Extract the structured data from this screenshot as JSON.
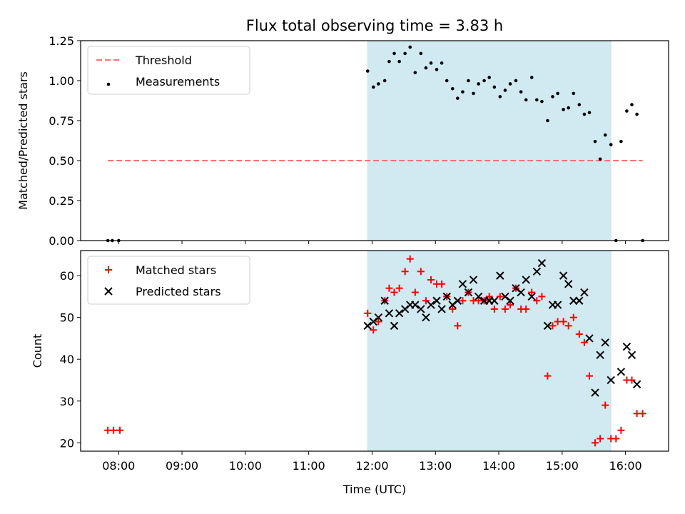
{
  "title": "Flux total observing time = 3.83 h",
  "colors": {
    "threshold": "#ff7070",
    "matched": "#ff0000",
    "predicted": "#000000",
    "measurement": "#000000",
    "span": "#add8e6"
  },
  "chart_data": [
    {
      "type": "scatter",
      "ylabel": "Matched/Predicted stars",
      "xlim": [
        7.4,
        16.68
      ],
      "ylim": [
        0,
        1.25
      ],
      "yticks": [
        0,
        0.25,
        0.5,
        0.75,
        1.0,
        1.25
      ],
      "ytick_labels": [
        "0.00",
        "0.25",
        "0.50",
        "0.75",
        "1.00",
        "1.25"
      ],
      "highlight_span": [
        11.93,
        15.77
      ],
      "threshold": {
        "label": "Threshold",
        "value": 0.5,
        "x_range": [
          7.83,
          16.27
        ]
      },
      "legend": {
        "placement": "top-left",
        "entries": [
          "Threshold",
          "Measurements"
        ]
      },
      "series": [
        {
          "name": "Measurements",
          "marker": "dot",
          "points": [
            [
              7.83,
              0.0
            ],
            [
              7.9,
              0.0
            ],
            [
              8.0,
              0.0
            ],
            [
              11.93,
              1.06
            ],
            [
              12.02,
              0.96
            ],
            [
              12.1,
              0.98
            ],
            [
              12.2,
              1.0
            ],
            [
              12.27,
              1.12
            ],
            [
              12.35,
              1.17
            ],
            [
              12.43,
              1.12
            ],
            [
              12.52,
              1.17
            ],
            [
              12.6,
              1.21
            ],
            [
              12.68,
              1.05
            ],
            [
              12.77,
              1.17
            ],
            [
              12.85,
              1.08
            ],
            [
              12.93,
              1.11
            ],
            [
              13.02,
              1.07
            ],
            [
              13.1,
              1.11
            ],
            [
              13.18,
              1.0
            ],
            [
              13.27,
              0.95
            ],
            [
              13.35,
              0.89
            ],
            [
              13.43,
              0.93
            ],
            [
              13.52,
              1.0
            ],
            [
              13.6,
              0.92
            ],
            [
              13.68,
              0.98
            ],
            [
              13.77,
              1.0
            ],
            [
              13.85,
              1.02
            ],
            [
              13.93,
              0.96
            ],
            [
              14.02,
              0.9
            ],
            [
              14.1,
              0.94
            ],
            [
              14.18,
              0.98
            ],
            [
              14.27,
              1.0
            ],
            [
              14.35,
              0.93
            ],
            [
              14.43,
              0.88
            ],
            [
              14.52,
              1.02
            ],
            [
              14.6,
              0.88
            ],
            [
              14.68,
              0.87
            ],
            [
              14.77,
              0.75
            ],
            [
              14.85,
              0.9
            ],
            [
              14.93,
              0.92
            ],
            [
              15.02,
              0.82
            ],
            [
              15.1,
              0.83
            ],
            [
              15.18,
              0.92
            ],
            [
              15.27,
              0.85
            ],
            [
              15.35,
              0.79
            ],
            [
              15.43,
              0.8
            ],
            [
              15.52,
              0.62
            ],
            [
              15.6,
              0.51
            ],
            [
              15.68,
              0.66
            ],
            [
              15.77,
              0.6
            ],
            [
              15.85,
              0.0
            ],
            [
              15.93,
              0.62
            ],
            [
              16.02,
              0.81
            ],
            [
              16.1,
              0.85
            ],
            [
              16.18,
              0.79
            ],
            [
              16.27,
              0.0
            ]
          ]
        }
      ]
    },
    {
      "type": "scatter",
      "ylabel": "Count",
      "xlabel": "Time (UTC)",
      "xlim": [
        7.4,
        16.68
      ],
      "ylim": [
        18,
        66
      ],
      "yticks": [
        20,
        30,
        40,
        50,
        60
      ],
      "xticks": [
        8,
        9,
        10,
        11,
        12,
        13,
        14,
        15,
        16
      ],
      "xtick_labels": [
        "08:00",
        "09:00",
        "10:00",
        "11:00",
        "12:00",
        "13:00",
        "14:00",
        "15:00",
        "16:00"
      ],
      "highlight_span": [
        11.93,
        15.77
      ],
      "legend": {
        "placement": "top-left",
        "entries": [
          "Matched stars",
          "Predicted stars"
        ]
      },
      "series": [
        {
          "name": "Matched stars",
          "marker": "plus",
          "points": [
            [
              7.83,
              23
            ],
            [
              7.92,
              23
            ],
            [
              8.02,
              23
            ],
            [
              11.93,
              51
            ],
            [
              12.02,
              47
            ],
            [
              12.1,
              49
            ],
            [
              12.2,
              54
            ],
            [
              12.27,
              57
            ],
            [
              12.35,
              56
            ],
            [
              12.43,
              57
            ],
            [
              12.52,
              61
            ],
            [
              12.6,
              64
            ],
            [
              12.68,
              56
            ],
            [
              12.77,
              61
            ],
            [
              12.85,
              54
            ],
            [
              12.93,
              59
            ],
            [
              13.02,
              58
            ],
            [
              13.1,
              58
            ],
            [
              13.18,
              55
            ],
            [
              13.27,
              52
            ],
            [
              13.35,
              48
            ],
            [
              13.43,
              54
            ],
            [
              13.52,
              56
            ],
            [
              13.6,
              54
            ],
            [
              13.68,
              54
            ],
            [
              13.77,
              54
            ],
            [
              13.85,
              55
            ],
            [
              13.93,
              52
            ],
            [
              14.02,
              55
            ],
            [
              14.1,
              52
            ],
            [
              14.18,
              53
            ],
            [
              14.27,
              57
            ],
            [
              14.35,
              52
            ],
            [
              14.43,
              52
            ],
            [
              14.52,
              56
            ],
            [
              14.6,
              54
            ],
            [
              14.68,
              55
            ],
            [
              14.77,
              36
            ],
            [
              14.85,
              48
            ],
            [
              14.93,
              49
            ],
            [
              15.02,
              49
            ],
            [
              15.1,
              48
            ],
            [
              15.18,
              50
            ],
            [
              15.27,
              46
            ],
            [
              15.35,
              44
            ],
            [
              15.43,
              36
            ],
            [
              15.52,
              20
            ],
            [
              15.6,
              21
            ],
            [
              15.68,
              29
            ],
            [
              15.77,
              21
            ],
            [
              15.85,
              21
            ],
            [
              15.93,
              23
            ],
            [
              16.02,
              35
            ],
            [
              16.1,
              35
            ],
            [
              16.18,
              27
            ],
            [
              16.27,
              27
            ]
          ]
        },
        {
          "name": "Predicted stars",
          "marker": "x",
          "points": [
            [
              11.93,
              48
            ],
            [
              12.02,
              49
            ],
            [
              12.1,
              50
            ],
            [
              12.2,
              54
            ],
            [
              12.27,
              51
            ],
            [
              12.35,
              48
            ],
            [
              12.43,
              51
            ],
            [
              12.52,
              52
            ],
            [
              12.6,
              53
            ],
            [
              12.68,
              53
            ],
            [
              12.77,
              52
            ],
            [
              12.85,
              50
            ],
            [
              12.93,
              53
            ],
            [
              13.02,
              54
            ],
            [
              13.1,
              52
            ],
            [
              13.18,
              55
            ],
            [
              13.27,
              53
            ],
            [
              13.35,
              54
            ],
            [
              13.43,
              58
            ],
            [
              13.52,
              56
            ],
            [
              13.6,
              59
            ],
            [
              13.68,
              55
            ],
            [
              13.77,
              54
            ],
            [
              13.85,
              54
            ],
            [
              13.93,
              54
            ],
            [
              14.02,
              60
            ],
            [
              14.1,
              55
            ],
            [
              14.18,
              54
            ],
            [
              14.27,
              57
            ],
            [
              14.35,
              56
            ],
            [
              14.43,
              59
            ],
            [
              14.52,
              55
            ],
            [
              14.6,
              61
            ],
            [
              14.68,
              63
            ],
            [
              14.77,
              48
            ],
            [
              14.85,
              53
            ],
            [
              14.93,
              53
            ],
            [
              15.02,
              60
            ],
            [
              15.1,
              58
            ],
            [
              15.18,
              54
            ],
            [
              15.27,
              54
            ],
            [
              15.35,
              56
            ],
            [
              15.43,
              45
            ],
            [
              15.52,
              32
            ],
            [
              15.6,
              41
            ],
            [
              15.68,
              44
            ],
            [
              15.77,
              35
            ],
            [
              15.93,
              37
            ],
            [
              16.02,
              43
            ],
            [
              16.1,
              41
            ],
            [
              16.18,
              34
            ]
          ]
        }
      ]
    }
  ]
}
